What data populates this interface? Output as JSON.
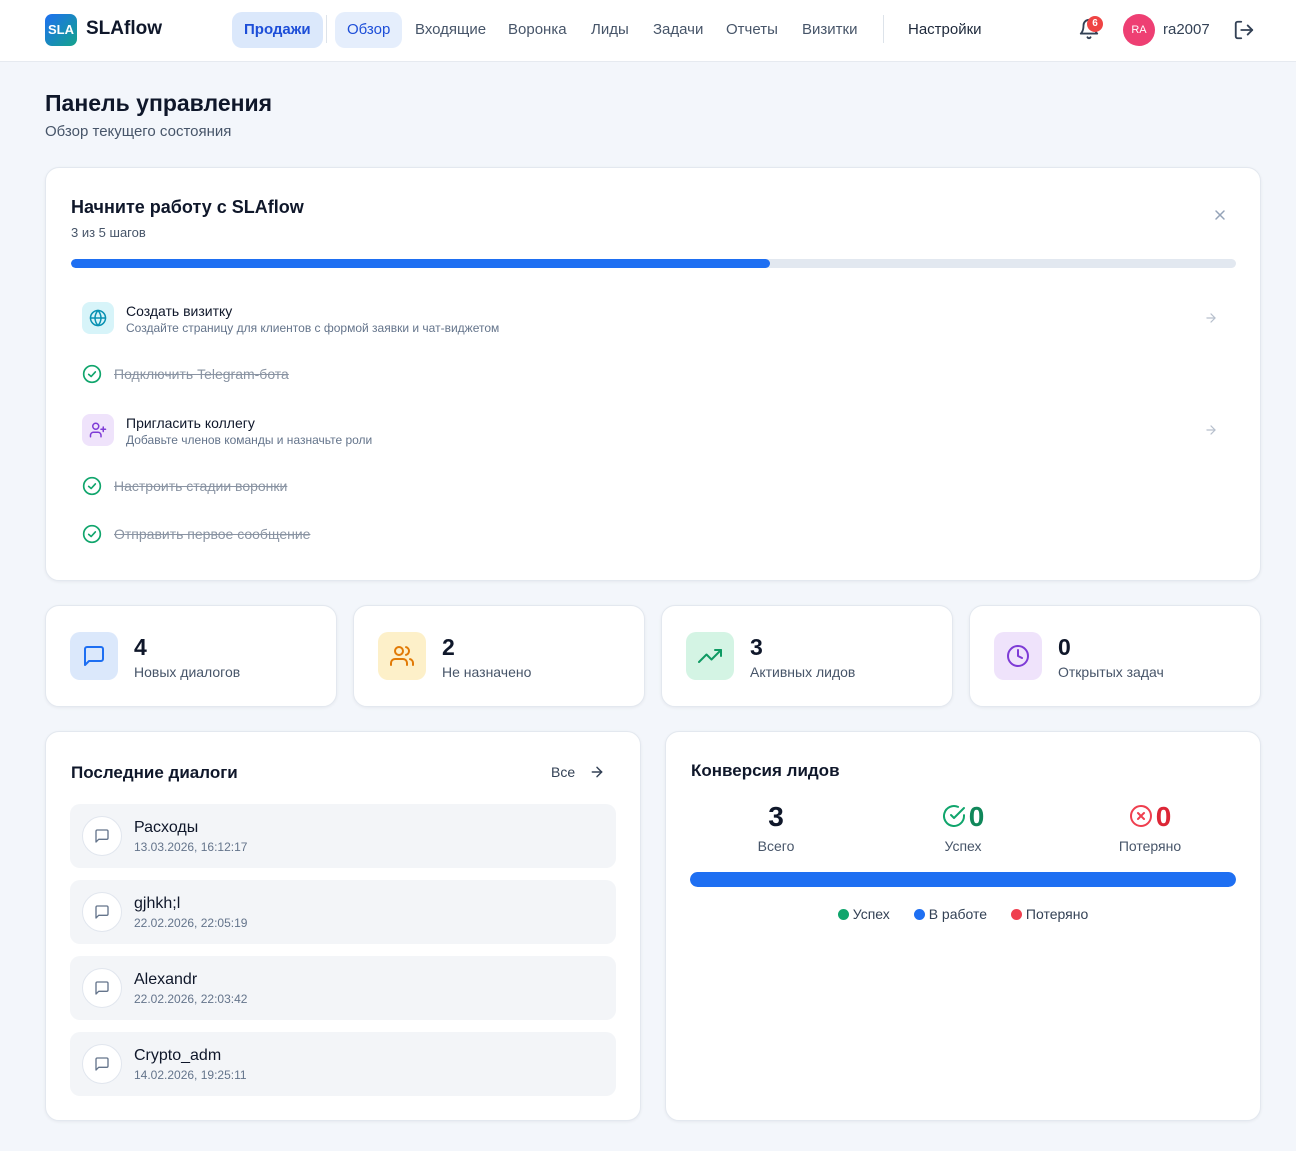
{
  "app": {
    "logo_badge": "SLA",
    "logo_name": "SLAflow"
  },
  "nav": {
    "section": "Продажи",
    "items": [
      "Обзор",
      "Входящие",
      "Воронка",
      "Лиды",
      "Задачи",
      "Отчеты",
      "Визитки"
    ],
    "settings": "Настройки",
    "active": "Обзор"
  },
  "header": {
    "notifications_count": "6",
    "avatar_initials": "RA",
    "username": "ra2007"
  },
  "page": {
    "title": "Панель управления",
    "subtitle": "Обзор текущего состояния"
  },
  "onboarding": {
    "title": "Начните работу с SLAflow",
    "progress_text": "3 из 5 шагов",
    "progress_fraction": 0.6,
    "steps": [
      {
        "title": "Создать визитку",
        "description": "Создайте страницу для клиентов с формой заявки и чат-виджетом",
        "done": false,
        "icon": "globe-icon"
      },
      {
        "title": "Подключить Telegram-бота",
        "done": true
      },
      {
        "title": "Пригласить коллегу",
        "description": "Добавьте членов команды и назначьте роли",
        "done": false,
        "icon": "user-plus-icon"
      },
      {
        "title": "Настроить стадии воронки",
        "done": true
      },
      {
        "title": "Отправить первое сообщение",
        "done": true
      }
    ]
  },
  "stats": [
    {
      "value": "4",
      "label": "Новых диалогов",
      "icon": "chat-icon",
      "color": "#1e6ff2",
      "bg": "#dbe8fb"
    },
    {
      "value": "2",
      "label": "Не назначено",
      "icon": "users-icon",
      "color": "#e17a06",
      "bg": "#fdf0c9"
    },
    {
      "value": "3",
      "label": "Активных лидов",
      "icon": "trending-up-icon",
      "color": "#0e9a63",
      "bg": "#d4f4e4"
    },
    {
      "value": "0",
      "label": "Открытых задач",
      "icon": "clock-icon",
      "color": "#7e3bd6",
      "bg": "#efe3fb"
    }
  ],
  "recent_dialogs": {
    "title": "Последние диалоги",
    "all_label": "Все",
    "items": [
      {
        "name": "Расходы",
        "time": "13.03.2026, 16:12:17"
      },
      {
        "name": "gjhkh;l",
        "time": "22.02.2026, 22:05:19"
      },
      {
        "name": "Alexandr",
        "time": "22.02.2026, 22:03:42"
      },
      {
        "name": "Crypto_adm",
        "time": "14.02.2026, 19:25:11"
      }
    ]
  },
  "conversion": {
    "title": "Конверсия лидов",
    "total_value": "3",
    "total_label": "Всего",
    "success_value": "0",
    "success_label": "Успех",
    "lost_value": "0",
    "lost_label": "Потеряно",
    "in_progress_fraction": 1.0,
    "legend": [
      {
        "label": "Успех",
        "color": "#10a56c"
      },
      {
        "label": "В работе",
        "color": "#1e6ff2"
      },
      {
        "label": "Потеряно",
        "color": "#ef3f4f"
      }
    ]
  }
}
